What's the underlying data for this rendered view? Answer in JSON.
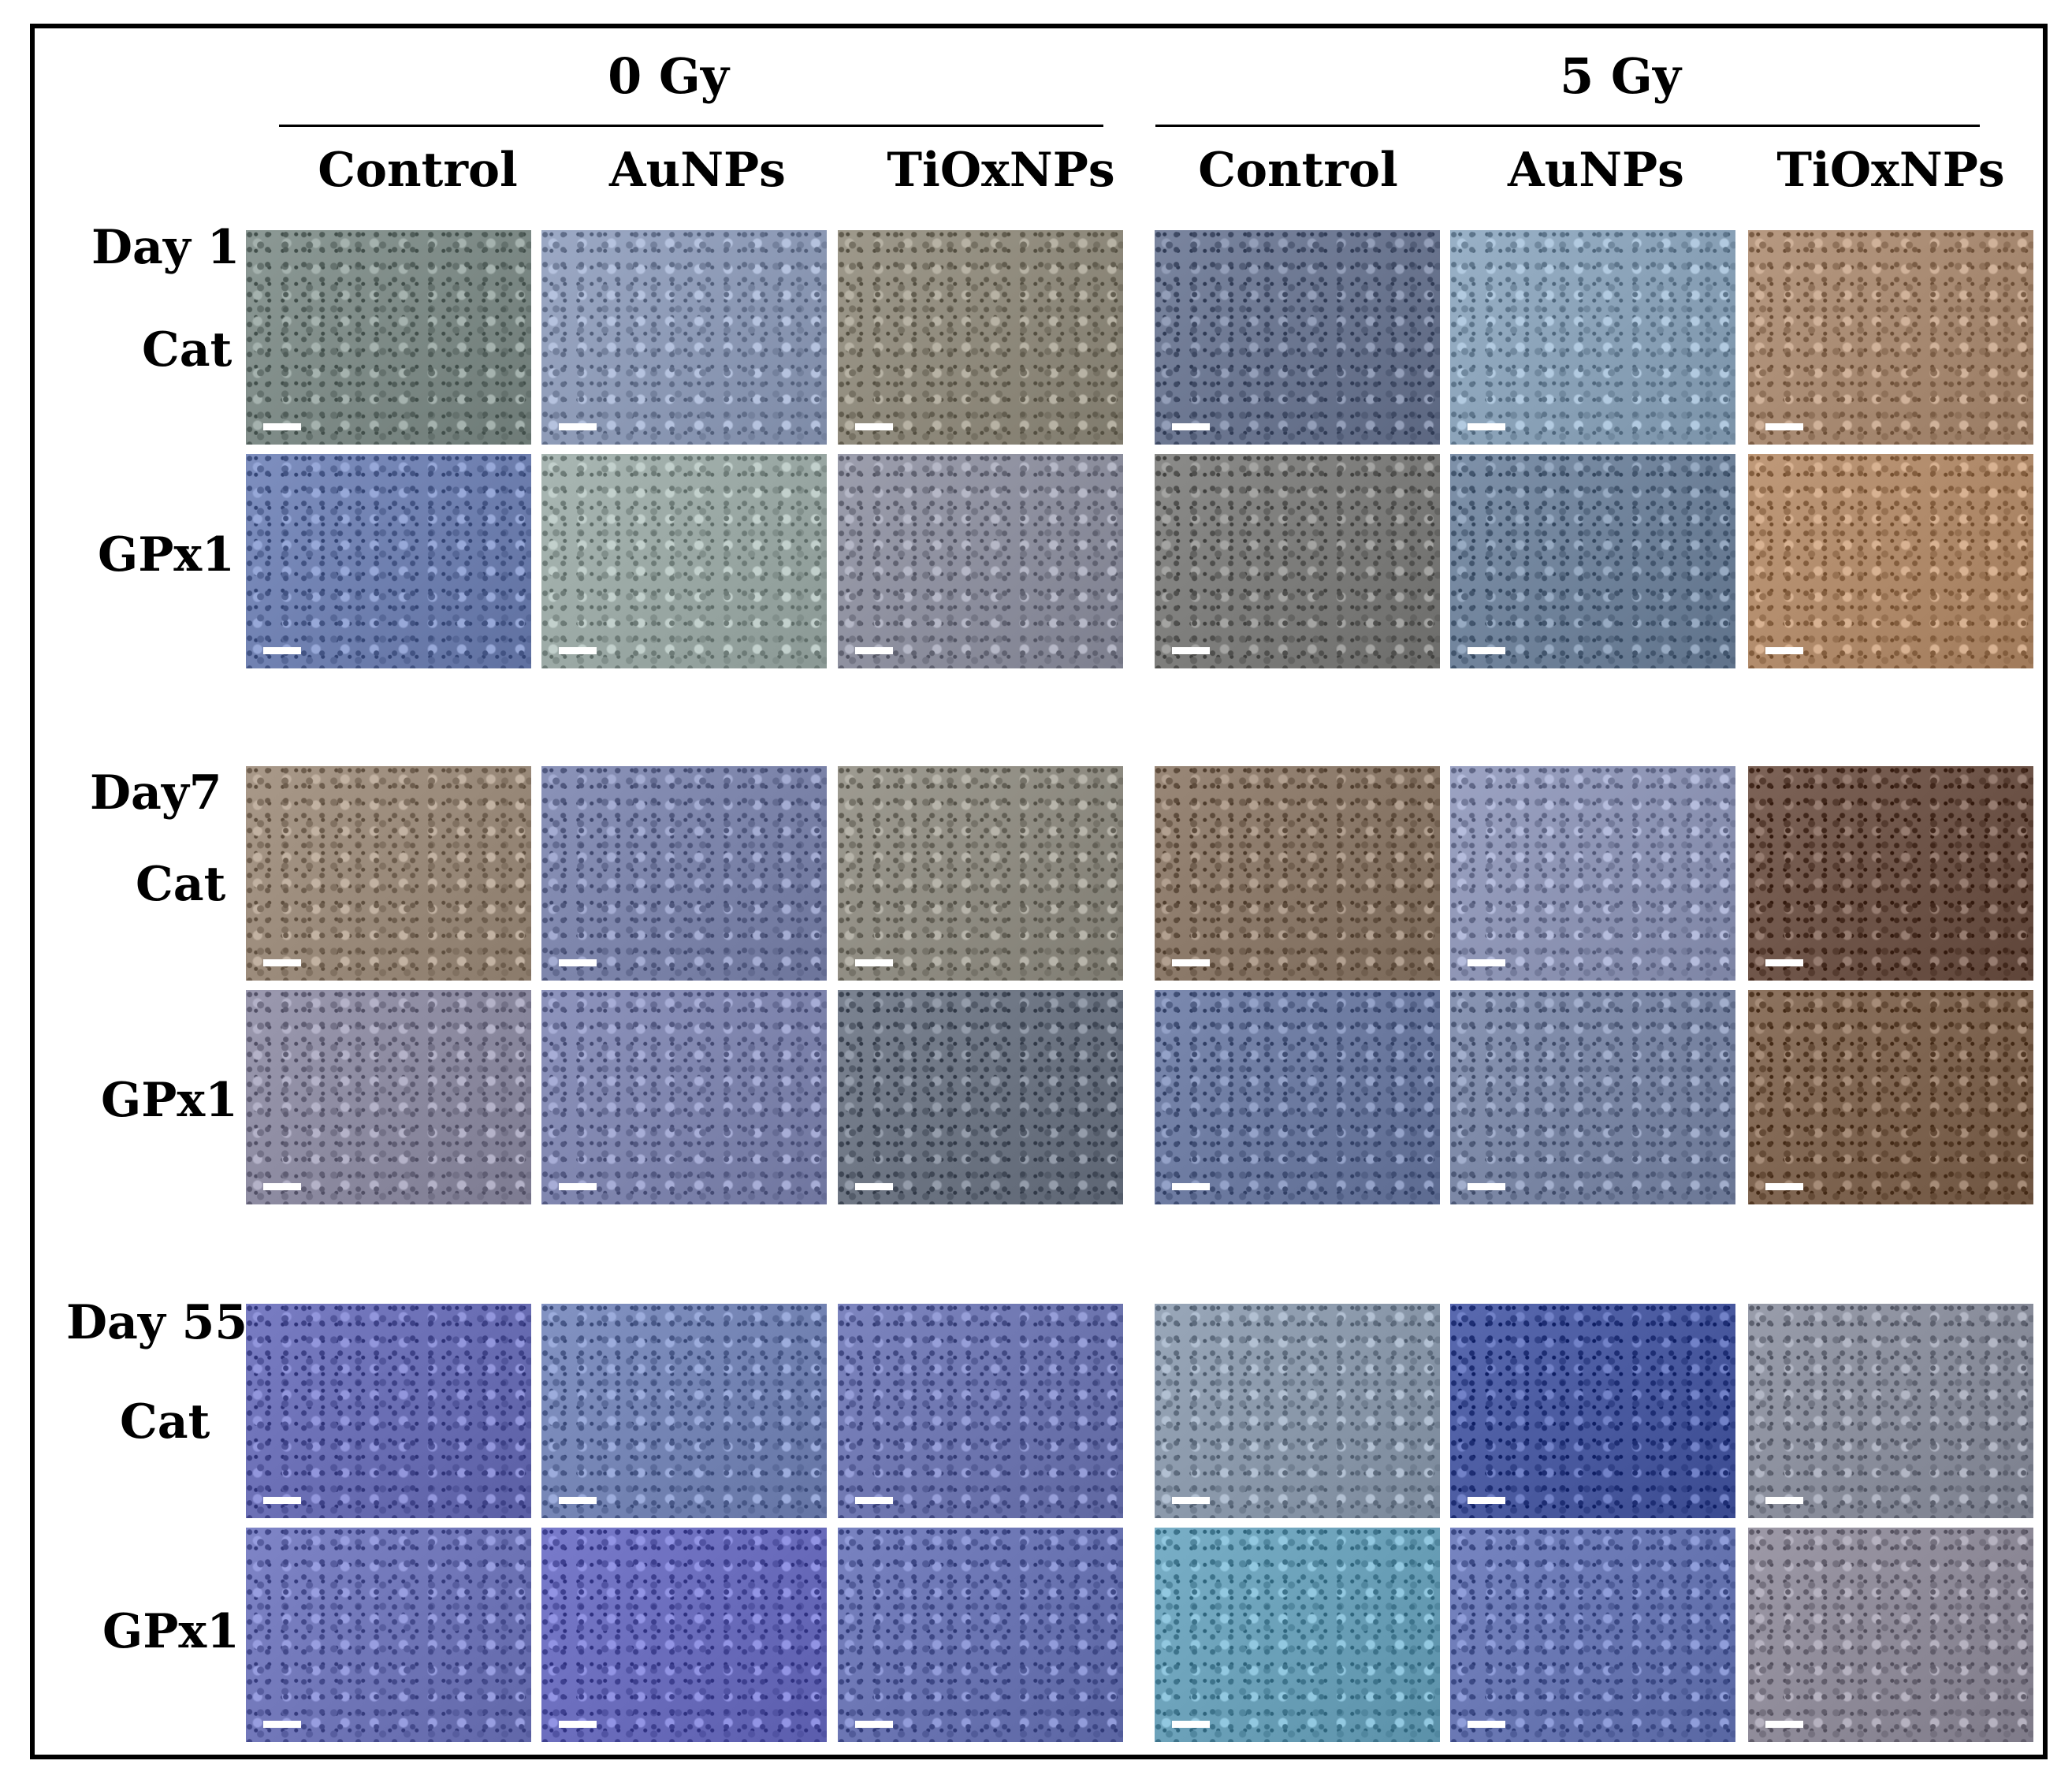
{
  "groups": [
    "0 Gy",
    "5 Gy"
  ],
  "conditions": [
    "Control",
    "AuNPs",
    "TiOxNPs"
  ],
  "days": [
    {
      "label": "Day 1",
      "markers": [
        "Cat",
        "GPx1"
      ]
    },
    {
      "label": "Day7",
      "markers": [
        "Cat",
        "GPx1"
      ]
    },
    {
      "label": "Day 55",
      "markers": [
        "Cat",
        "GPx1"
      ]
    }
  ],
  "panel_stain_colors": [
    [
      [
        "#7d8a86",
        "#8d9ab6",
        "#8f8a7c",
        "#6b7690",
        "#8aa2b8",
        "#a88a72"
      ],
      [
        "#6f80b0",
        "#9aa8a4",
        "#8d8f9e",
        "#7c7c7a",
        "#6f829a",
        "#b08a6a"
      ]
    ],
    [
      [
        "#9a8a7a",
        "#7c84aa",
        "#8f8c82",
        "#8a7868",
        "#8d94b4",
        "#6e5448"
      ],
      [
        "#8c8aa0",
        "#7f85ae",
        "#6c7482",
        "#6c7aa0",
        "#7a86a4",
        "#7e6450"
      ]
    ],
    [
      [
        "#6a6eb4",
        "#7484b4",
        "#6e76b0",
        "#8a98aa",
        "#4a5aa0",
        "#8a8e9c"
      ],
      [
        "#7076b8",
        "#6a6cbc",
        "#6a74b2",
        "#6aa0b8",
        "#6876b2",
        "#8e8a98"
      ]
    ]
  ]
}
